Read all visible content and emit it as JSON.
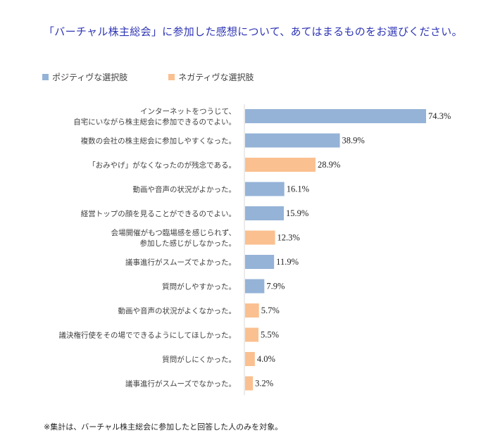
{
  "title": "「バーチャル株主総会」に参加した感想について、あてはまるものをお選びください。",
  "legend": {
    "positive": {
      "label": "ポジティヴな選択肢",
      "color": "#95b3d7"
    },
    "negative": {
      "label": "ネガティヴな選択肢",
      "color": "#fac090"
    }
  },
  "footnote": "※集計は、バーチャル株主総会に参加したと回答した人のみを対象。",
  "chart_data": {
    "type": "bar",
    "orientation": "horizontal",
    "title": "「バーチャル株主総会」に参加した感想について、あてはまるものをお選びください。",
    "unit": "%",
    "xlim": [
      0,
      74.3
    ],
    "grid": false,
    "legend_position": "top-left",
    "categories": [
      [
        "インターネットをつうじて、",
        "自宅にいながら株主総会に参加できるのでよい。"
      ],
      [
        "複数の会社の株主総会に参加しやすくなった。"
      ],
      [
        "「おみやげ」がなくなったのが残念である。"
      ],
      [
        "動画や音声の状況がよかった。"
      ],
      [
        "経営トップの顔を見ることができるのでよい。"
      ],
      [
        "会場開催がもつ臨場感を感じられず、",
        "参加した感じがしなかった。"
      ],
      [
        "議事進行がスムーズでよかった。"
      ],
      [
        "質問がしやすかった。"
      ],
      [
        "動画や音声の状況がよくなかった。"
      ],
      [
        "議決権行使をその場でできるようにしてほしかった。"
      ],
      [
        "質問がしにくかった。"
      ],
      [
        "議事進行がスムーズでなかった。"
      ]
    ],
    "values": [
      74.3,
      38.9,
      28.9,
      16.1,
      15.9,
      12.3,
      11.9,
      7.9,
      5.7,
      5.5,
      4.0,
      3.2
    ],
    "value_labels": [
      "74.3%",
      "38.9%",
      "28.9%",
      "16.1%",
      "15.9%",
      "12.3%",
      "11.9%",
      "7.9%",
      "5.7%",
      "5.5%",
      "4.0%",
      "3.2%"
    ],
    "polarity": [
      "positive",
      "positive",
      "negative",
      "positive",
      "positive",
      "negative",
      "positive",
      "positive",
      "negative",
      "negative",
      "negative",
      "negative"
    ]
  }
}
